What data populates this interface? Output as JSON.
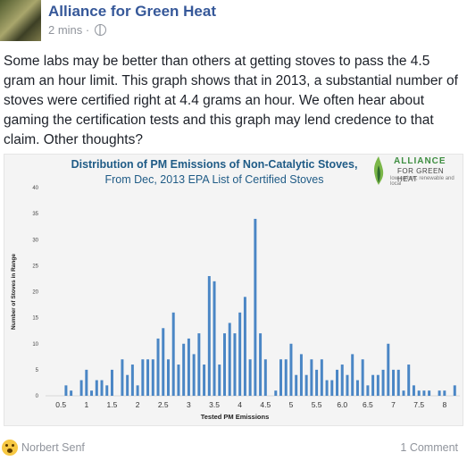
{
  "post": {
    "page_name": "Alliance for Green Heat",
    "time": "2 mins",
    "time_separator": "·",
    "text": "Some labs may be better than others at getting stoves to pass the 4.5 gram an hour limit. This graph shows that in 2013, a substantial number of stoves were certified right at 4.4 grams an hour. We often hear about gaming the certification tests and this graph may lend credence to that claim. Other thoughts?"
  },
  "logo": {
    "line1": "ALLIANCE",
    "line2": "FOR GREEN HEAT",
    "tagline": "low carbon, renewable and local"
  },
  "chart_data": {
    "type": "bar",
    "title": "Distribution of PM Emissions of Non-Catalytic Stoves,",
    "subtitle": "From Dec, 2013 EPA List of Certified Stoves",
    "xlabel": "Tested PM Emissions",
    "ylabel": "Number of Stoves in Range",
    "ylim": [
      0,
      40
    ],
    "yticks": [
      "0",
      "5",
      "10",
      "15",
      "20",
      "25",
      "30",
      "35",
      "40"
    ],
    "xticks": [
      "0.5",
      "1",
      "1.5",
      "2",
      "2.5",
      "3",
      "3.5",
      "4",
      "4.5",
      "5",
      "5.5",
      "6.0",
      "6.5",
      "7",
      "7.5",
      "8"
    ],
    "bin_width": 0.1,
    "x": [
      0.6,
      0.7,
      0.9,
      1.0,
      1.1,
      1.2,
      1.3,
      1.4,
      1.5,
      1.7,
      1.8,
      1.9,
      2.0,
      2.1,
      2.2,
      2.3,
      2.4,
      2.5,
      2.6,
      2.7,
      2.8,
      2.9,
      3.0,
      3.1,
      3.2,
      3.3,
      3.4,
      3.5,
      3.6,
      3.7,
      3.8,
      3.9,
      4.0,
      4.1,
      4.2,
      4.3,
      4.4,
      4.5,
      4.7,
      4.8,
      4.9,
      5.0,
      5.1,
      5.2,
      5.3,
      5.4,
      5.5,
      5.6,
      5.7,
      5.8,
      5.9,
      6.0,
      6.1,
      6.2,
      6.3,
      6.4,
      6.5,
      6.6,
      6.7,
      6.8,
      6.9,
      7.0,
      7.1,
      7.2,
      7.3,
      7.4,
      7.5,
      7.6,
      7.7,
      7.8,
      7.9,
      8.0,
      8.2
    ],
    "values": [
      2,
      1,
      3,
      5,
      1,
      3,
      3,
      2,
      5,
      7,
      4,
      6,
      2,
      7,
      7,
      7,
      11,
      13,
      7,
      16,
      6,
      10,
      11,
      8,
      12,
      6,
      23,
      22,
      6,
      12,
      14,
      12,
      16,
      19,
      7,
      34,
      12,
      7,
      1,
      7,
      7,
      10,
      4,
      8,
      4,
      7,
      5,
      7,
      3,
      3,
      5,
      6,
      4,
      8,
      3,
      7,
      2,
      4,
      4,
      5,
      10,
      5,
      5,
      1,
      6,
      2,
      1,
      1,
      1,
      0,
      1,
      1,
      2
    ]
  },
  "footer": {
    "reactor": "Norbert Senf",
    "comments": "1 Comment"
  }
}
